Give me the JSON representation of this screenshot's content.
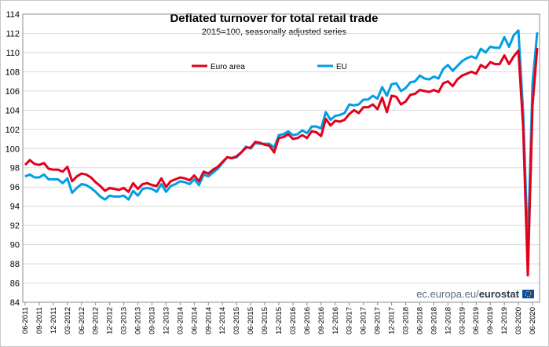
{
  "chart_data": {
    "type": "line",
    "title": "Deflated turnover for total retail trade",
    "subtitle": "2015=100, seasonally adjusted series",
    "xlabel": "",
    "ylabel": "",
    "ylim": [
      84,
      114
    ],
    "yticks": [
      84,
      86,
      88,
      90,
      92,
      94,
      96,
      98,
      100,
      102,
      104,
      106,
      108,
      110,
      112,
      114
    ],
    "grid": true,
    "legend_position": "top-left",
    "x_start": "06-2011",
    "x_end": "06-2020",
    "x_tick_labels": [
      "06-2011",
      "09-2011",
      "12-2011",
      "03-2012",
      "06-2012",
      "09-2012",
      "12-2012",
      "03-2013",
      "06-2013",
      "09-2013",
      "12-2013",
      "03-2014",
      "06-2014",
      "09-2014",
      "12-2014",
      "03-2015",
      "06-2015",
      "09-2015",
      "12-2015",
      "03-2016",
      "06-2016",
      "09-2016",
      "12-2016",
      "03-2017",
      "06-2017",
      "09-2017",
      "12-2017",
      "03-2018",
      "06-2018",
      "09-2018",
      "12-2018",
      "03-2019",
      "06-2019",
      "09-2019",
      "12-2019",
      "03-2020",
      "06-2020"
    ],
    "series": [
      {
        "name": "Euro area",
        "color": "#e2001a",
        "values": [
          98.3,
          98.8,
          98.4,
          98.3,
          98.5,
          97.9,
          97.8,
          97.8,
          97.6,
          98.1,
          96.6,
          97.1,
          97.4,
          97.3,
          97.0,
          96.5,
          96.1,
          95.6,
          95.9,
          95.8,
          95.7,
          95.9,
          95.5,
          96.4,
          95.8,
          96.3,
          96.4,
          96.2,
          96.1,
          96.9,
          96.0,
          96.6,
          96.8,
          97.0,
          96.9,
          96.7,
          97.2,
          96.6,
          97.6,
          97.4,
          97.8,
          98.1,
          98.6,
          99.1,
          99.0,
          99.2,
          99.6,
          100.1,
          100.1,
          100.7,
          100.6,
          100.4,
          100.3,
          99.6,
          101.1,
          101.2,
          101.5,
          101.0,
          101.1,
          101.4,
          101.1,
          101.8,
          101.7,
          101.3,
          103.1,
          102.4,
          102.9,
          102.8,
          103.0,
          103.6,
          104.0,
          103.7,
          104.3,
          104.3,
          104.6,
          104.1,
          105.3,
          103.8,
          105.5,
          105.4,
          104.6,
          104.9,
          105.6,
          105.7,
          106.1,
          106.0,
          105.9,
          106.1,
          105.9,
          106.8,
          107.0,
          106.5,
          107.2,
          107.6,
          107.8,
          108.0,
          107.8,
          108.7,
          108.4,
          109.0,
          108.8,
          108.8,
          109.7,
          108.8,
          109.6,
          110.2,
          102.3,
          86.8,
          104.5,
          110.5
        ]
      },
      {
        "name": "EU",
        "color": "#009fe3",
        "values": [
          97.1,
          97.3,
          97.0,
          97.0,
          97.3,
          96.8,
          96.8,
          96.8,
          96.4,
          96.9,
          95.4,
          95.9,
          96.3,
          96.2,
          95.9,
          95.5,
          95.0,
          94.7,
          95.1,
          95.0,
          95.0,
          95.1,
          94.7,
          95.6,
          95.1,
          95.8,
          95.9,
          95.8,
          95.5,
          96.3,
          95.5,
          96.1,
          96.3,
          96.6,
          96.5,
          96.3,
          96.8,
          96.2,
          97.3,
          97.1,
          97.5,
          97.9,
          98.5,
          99.1,
          99.0,
          99.1,
          99.6,
          100.2,
          100.0,
          100.6,
          100.5,
          100.5,
          100.5,
          100.1,
          101.4,
          101.5,
          101.8,
          101.4,
          101.5,
          101.9,
          101.6,
          102.3,
          102.3,
          102.1,
          103.8,
          103.0,
          103.4,
          103.5,
          103.7,
          104.6,
          104.5,
          104.6,
          105.1,
          105.1,
          105.5,
          105.2,
          106.4,
          105.5,
          106.7,
          106.8,
          106.0,
          106.3,
          106.9,
          107.0,
          107.6,
          107.3,
          107.2,
          107.5,
          107.3,
          108.3,
          108.7,
          108.1,
          108.6,
          109.1,
          109.4,
          109.6,
          109.4,
          110.4,
          110.0,
          110.6,
          110.5,
          110.5,
          111.6,
          110.6,
          111.8,
          112.3,
          103.8,
          89.6,
          106.8,
          112.1
        ]
      }
    ]
  },
  "source": {
    "prefix": "ec.europa.eu/",
    "brand": "eurostat",
    "flag_color": "#0d4da1"
  }
}
